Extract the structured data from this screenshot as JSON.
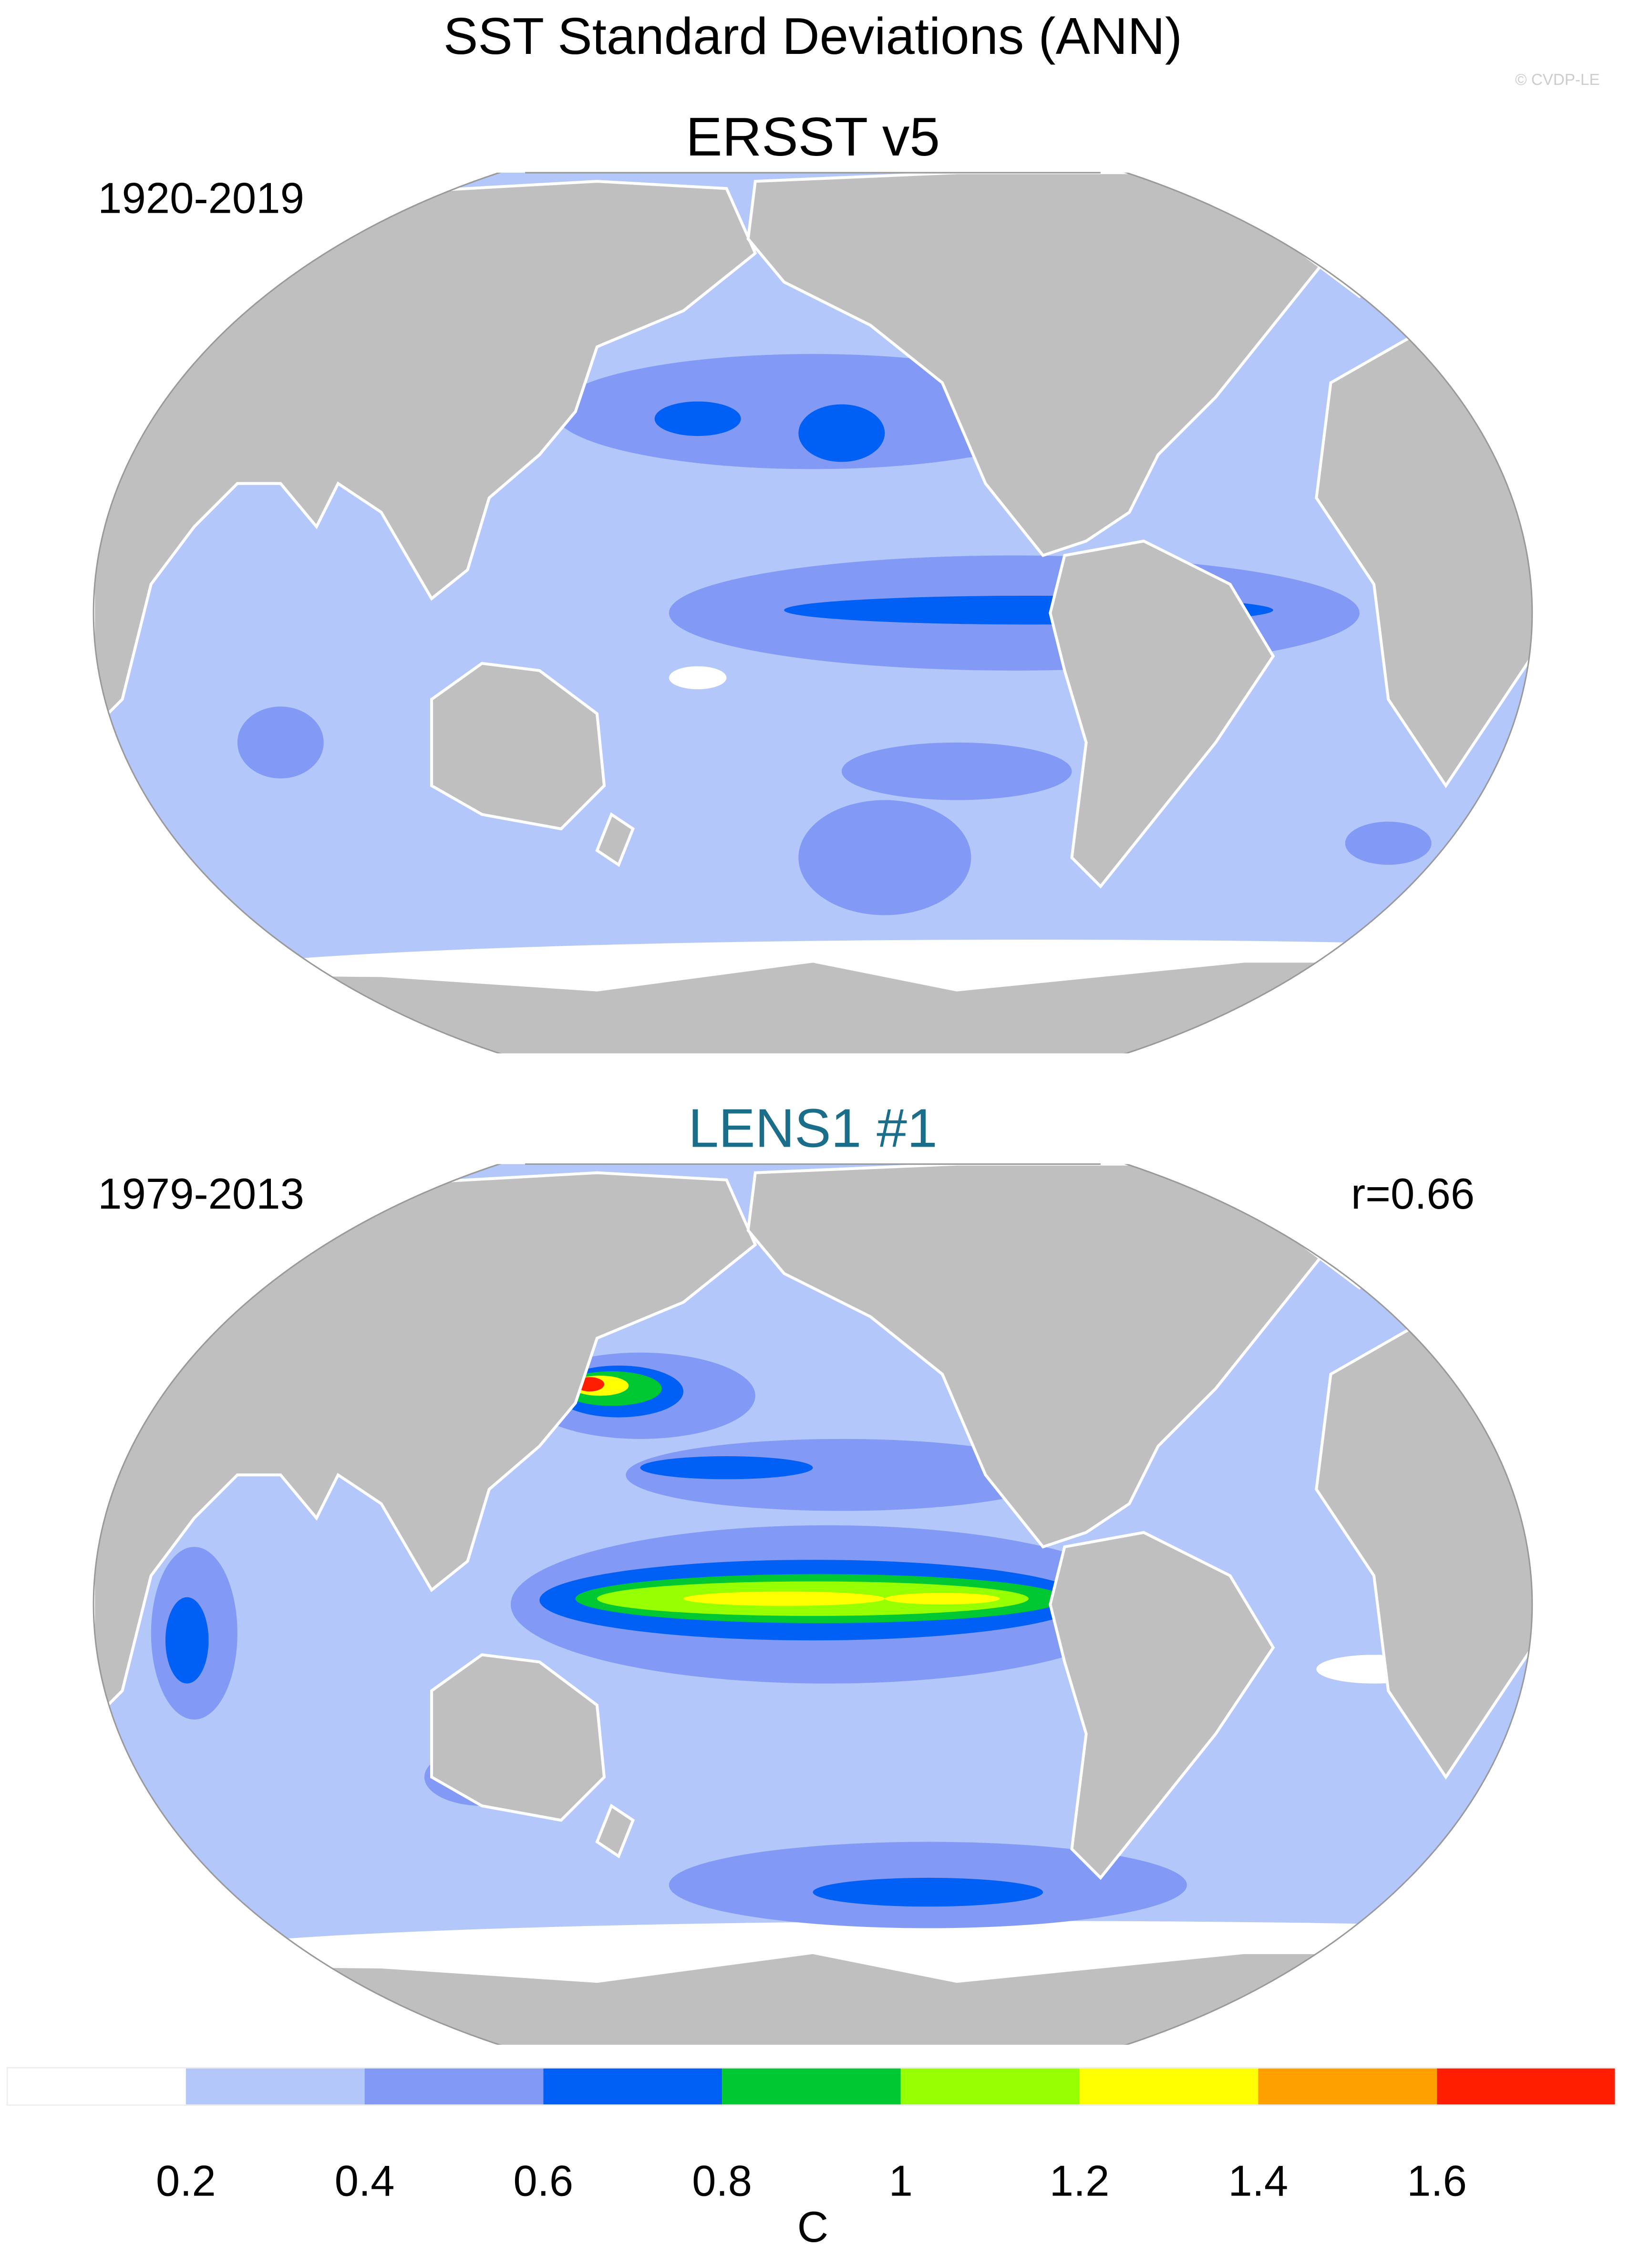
{
  "title": "SST Standard Deviations (ANN)",
  "credit": "© CVDP-LE",
  "panels": [
    {
      "title": "ERSST v5",
      "period": "1920-2019"
    },
    {
      "title": "LENS1 #1",
      "period": "1979-2013",
      "stat": "r=0.66"
    }
  ],
  "colorbar": {
    "colors": [
      "#ffffff",
      "#b4c7fa",
      "#8299f6",
      "#0060f5",
      "#00c832",
      "#96ff00",
      "#ffff00",
      "#ffa000",
      "#ff1e00"
    ],
    "ticks": [
      0.2,
      0.4,
      0.6,
      0.8,
      1,
      1.2,
      1.4,
      1.6
    ],
    "unit": "C"
  }
}
